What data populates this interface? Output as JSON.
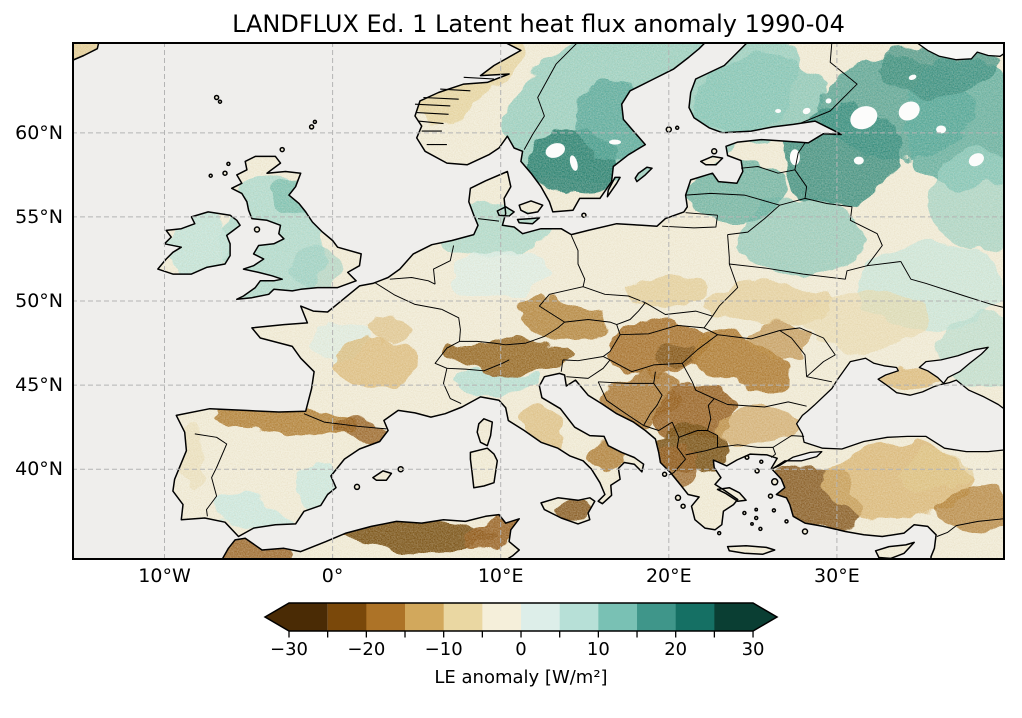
{
  "figure": {
    "title": "LANDFLUX Ed. 1 Latent heat flux anomaly 1990-04",
    "background": "#ffffff"
  },
  "map": {
    "sea_color": "#efeeec",
    "land_base_color": "#f1ecd8",
    "lake_color": "#fcfcfb",
    "coastline_color": "#000000",
    "border_color": "#000000",
    "grid_color": "#b4b4b4",
    "x_tick_labels": [
      "10°W",
      "0°",
      "10°E",
      "20°E",
      "30°E"
    ],
    "x_tick_lons": [
      -10,
      0,
      10,
      20,
      30
    ],
    "y_tick_labels": [
      "60°N",
      "55°N",
      "50°N",
      "45°N",
      "40°N"
    ],
    "y_tick_lats": [
      60,
      55,
      50,
      45,
      40
    ],
    "extent": {
      "lon_min": -15.5,
      "lon_max": 40.0,
      "lat_min": 34.6,
      "lat_max": 65.4
    }
  },
  "colorbar": {
    "label": "LE anomaly [W/m²]",
    "tick_labels": [
      "−30",
      "−20",
      "−10",
      "0",
      "10",
      "20",
      "30"
    ],
    "tick_values": [
      -30,
      -20,
      -10,
      0,
      10,
      20,
      30
    ],
    "boundaries": [
      -30,
      -25,
      -20,
      -15,
      -10,
      -5,
      0,
      5,
      10,
      15,
      20,
      25,
      30
    ],
    "segment_colors": [
      "#4a2b05",
      "#7a480a",
      "#ad7327",
      "#d2a85c",
      "#ead7a2",
      "#f5efda",
      "#ddeee9",
      "#b7e0d7",
      "#79c1b4",
      "#3f968a",
      "#157064",
      "#0a3e33"
    ],
    "extend": "both",
    "outline_color": "#000000"
  },
  "chart_data": {
    "type": "heatmap",
    "title": "LANDFLUX Ed. 1 Latent heat flux anomaly 1990-04",
    "variable": "Latent heat flux (LE) anomaly",
    "units": "W/m²",
    "period": "1990-04",
    "dataset": "LANDFLUX Ed. 1",
    "projection": "equirectangular (PlateCarree), Europe",
    "domain": {
      "lon": [
        -15.5,
        40.0
      ],
      "lat": [
        34.6,
        65.4
      ]
    },
    "colormap": "BrBG, discrete 5 W/m² bins from −30 to 30, extended both ends",
    "value_range": [
      -30,
      30
    ],
    "xlabel_ticks": [
      "10°W",
      "0°",
      "10°E",
      "20°E",
      "30°E"
    ],
    "ylabel_ticks": [
      "60°N",
      "55°N",
      "50°N",
      "45°N",
      "40°N"
    ],
    "grid": "dashed gray graticule every 10° lon / 5° lat",
    "regional_pattern": [
      {
        "region": "Southern Sweden, Baltic states, Pskov/NW Russia",
        "anomaly_wm2": "+15 to +30"
      },
      {
        "region": "Finland, Karelia, NE Russia",
        "anomaly_wm2": "+5 to +20"
      },
      {
        "region": "British Isles, Denmark, northern Germany, Belarus",
        "anomaly_wm2": "+5 to +10"
      },
      {
        "region": "Norway west coast",
        "anomaly_wm2": "−5 to 0"
      },
      {
        "region": "Alps, Czechia, Hungary, Carpathians (Romania)",
        "anomaly_wm2": "−15 to −25"
      },
      {
        "region": "Serbia, North Macedonia, northern Greece, Albania",
        "anomaly_wm2": "−20 to −30"
      },
      {
        "region": "Western Turkey, Atlas mountains (NW Africa), Sicily",
        "anomaly_wm2": "−15 to −30"
      },
      {
        "region": "Central France, N Spain band, Bulgaria, W Ukraine, central Turkey",
        "anomaly_wm2": "−5 to −15"
      },
      {
        "region": "Iberia interior, SE Spain, Po valley, E Ukraine",
        "anomaly_wm2": "−5 to +10"
      },
      {
        "region": "Seas and large lakes (Black Sea, Baltic, Ladoga, Onega, Vänern...)",
        "anomaly_wm2": "no data"
      }
    ]
  }
}
